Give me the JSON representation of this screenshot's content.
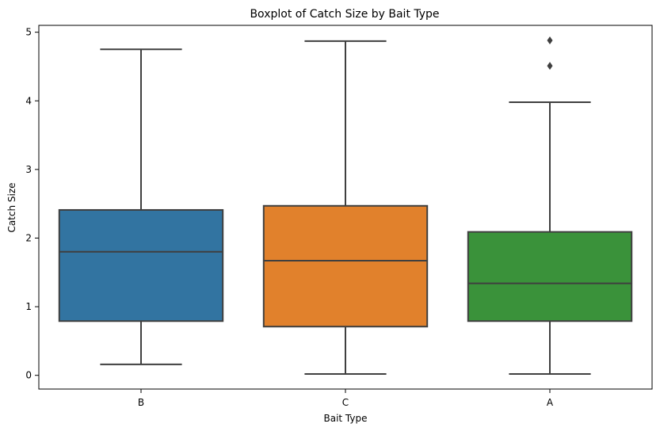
{
  "chart_data": {
    "type": "boxplot",
    "title": "Boxplot of Catch Size by Bait Type",
    "xlabel": "Bait Type",
    "ylabel": "Catch Size",
    "categories": [
      "B",
      "C",
      "A"
    ],
    "ylim": [
      -0.2,
      5.1
    ],
    "yticks": [
      0,
      1,
      2,
      3,
      4,
      5
    ],
    "grid": false,
    "legend": "none",
    "boxes": [
      {
        "category": "B",
        "color": "#3274a1",
        "whisker_low": 0.16,
        "q1": 0.79,
        "median": 1.8,
        "q3": 2.41,
        "whisker_high": 4.75,
        "outliers": []
      },
      {
        "category": "C",
        "color": "#e1812c",
        "whisker_low": 0.02,
        "q1": 0.71,
        "median": 1.67,
        "q3": 2.47,
        "whisker_high": 4.87,
        "outliers": []
      },
      {
        "category": "A",
        "color": "#3a923a",
        "whisker_low": 0.02,
        "q1": 0.79,
        "median": 1.34,
        "q3": 2.09,
        "whisker_high": 3.98,
        "outliers": [
          4.51,
          4.88
        ]
      }
    ]
  }
}
